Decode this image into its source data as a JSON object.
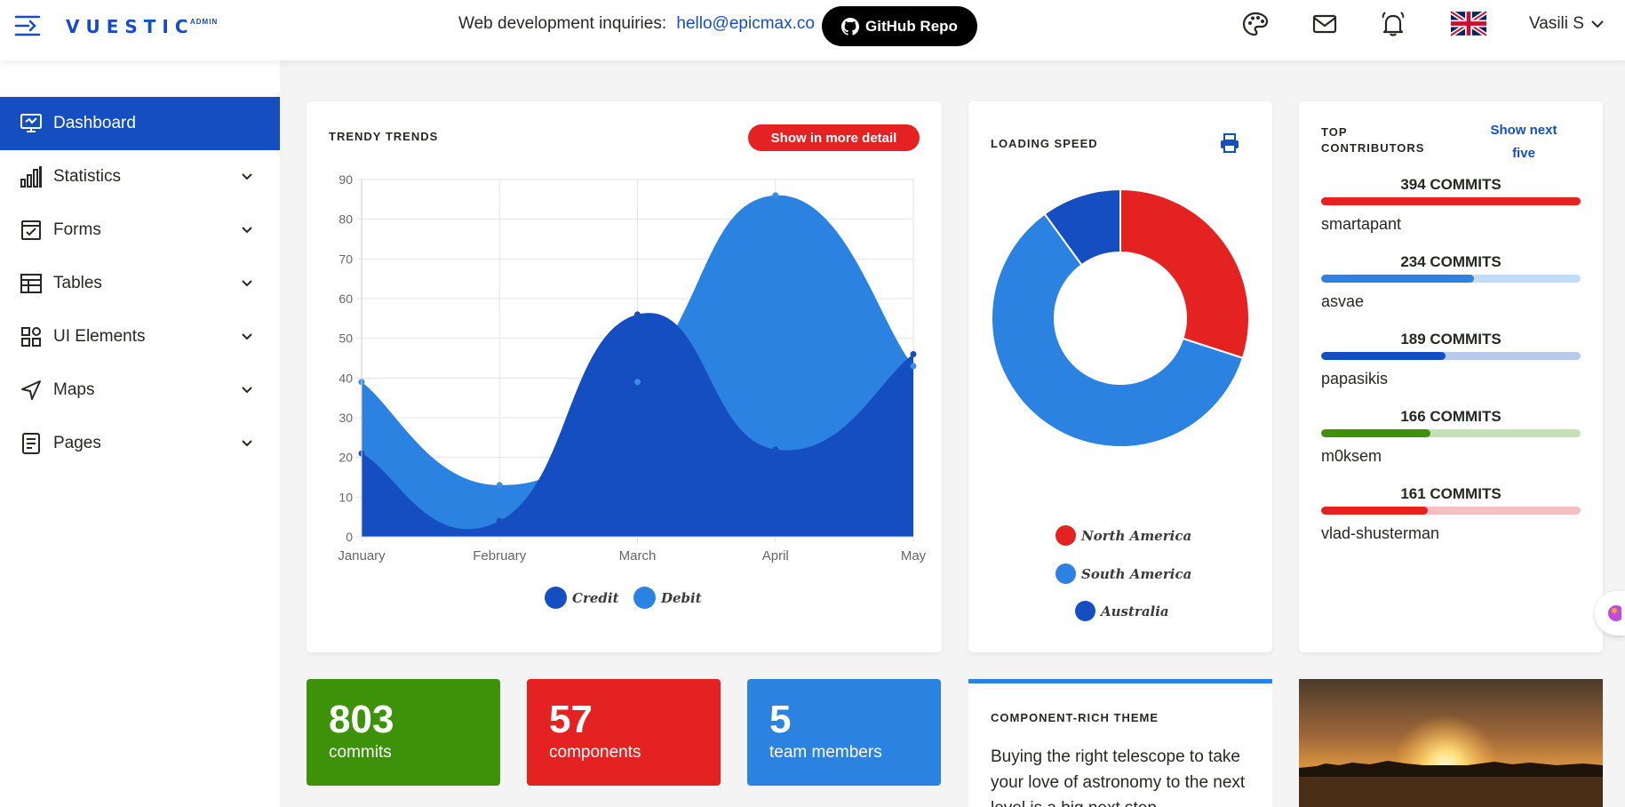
{
  "header": {
    "logo": "VUESTIC",
    "logo_sup": "ADMIN",
    "inquiry_text": "Web development inquiries:",
    "inquiry_email": "hello@epicmax.co",
    "github_button": "GitHub Repo",
    "user_name": "Vasili S"
  },
  "sidebar": {
    "items": [
      {
        "label": "Dashboard",
        "icon": "monitor-icon"
      },
      {
        "label": "Statistics",
        "icon": "bar-chart-icon"
      },
      {
        "label": "Forms",
        "icon": "checkbox-form-icon"
      },
      {
        "label": "Tables",
        "icon": "table-icon"
      },
      {
        "label": "UI Elements",
        "icon": "grid-elements-icon"
      },
      {
        "label": "Maps",
        "icon": "navigation-arrow-icon"
      },
      {
        "label": "Pages",
        "icon": "document-icon"
      }
    ]
  },
  "trends": {
    "title": "TRENDY TRENDS",
    "button": "Show in more detail"
  },
  "loading": {
    "title": "LOADING SPEED"
  },
  "contributors": {
    "title_line1": "TOP",
    "title_line2": "CONTRIBUTORS",
    "show_next_line1": "Show next",
    "show_next_line2": "five",
    "items": [
      {
        "count": "394 COMMITS",
        "name": "smartapant",
        "pct": 1.0,
        "color": "#e42222",
        "track": "#e42222"
      },
      {
        "count": "234 COMMITS",
        "name": "asvae",
        "pct": 0.59,
        "color": "#2c82e0",
        "track": "#c0dcf6"
      },
      {
        "count": "189 COMMITS",
        "name": "papasikis",
        "pct": 0.48,
        "color": "#154ec1",
        "track": "#b9c9ec"
      },
      {
        "count": "166 COMMITS",
        "name": "m0ksem",
        "pct": 0.42,
        "color": "#3d9209",
        "track": "#c5e0b4"
      },
      {
        "count": "161 COMMITS",
        "name": "vlad-shusterman",
        "pct": 0.41,
        "color": "#e42222",
        "track": "#f5bfbf"
      }
    ]
  },
  "stats": [
    {
      "value": "803",
      "label": "commits",
      "color": "#3d9209"
    },
    {
      "value": "57",
      "label": "components",
      "color": "#e42222"
    },
    {
      "value": "5",
      "label": "team members",
      "color": "#2c82e0"
    }
  ],
  "theme": {
    "title": "COMPONENT-RICH THEME",
    "text": "Buying the right telescope to take your love of astronomy to the next level is a big next step."
  },
  "chart_data": [
    {
      "type": "area",
      "title": "TRENDY TRENDS",
      "categories": [
        "January",
        "February",
        "March",
        "April",
        "May"
      ],
      "ylim": [
        0,
        90
      ],
      "yticks": [
        0,
        10,
        20,
        30,
        40,
        50,
        60,
        70,
        80,
        90
      ],
      "grid": true,
      "legend": "bottom",
      "series": [
        {
          "name": "Credit",
          "values": [
            21,
            4,
            56,
            22,
            46
          ],
          "color": "#154ec1"
        },
        {
          "name": "Debit",
          "values": [
            39,
            13,
            39,
            86,
            43
          ],
          "color": "#2c82e0"
        }
      ]
    },
    {
      "type": "pie",
      "title": "LOADING SPEED",
      "legend": "bottom",
      "slices": [
        {
          "name": "North America",
          "value": 30,
          "color": "#e42222"
        },
        {
          "name": "South America",
          "value": 60,
          "color": "#2c82e0"
        },
        {
          "name": "Australia",
          "value": 10,
          "color": "#154ec1"
        }
      ]
    }
  ]
}
